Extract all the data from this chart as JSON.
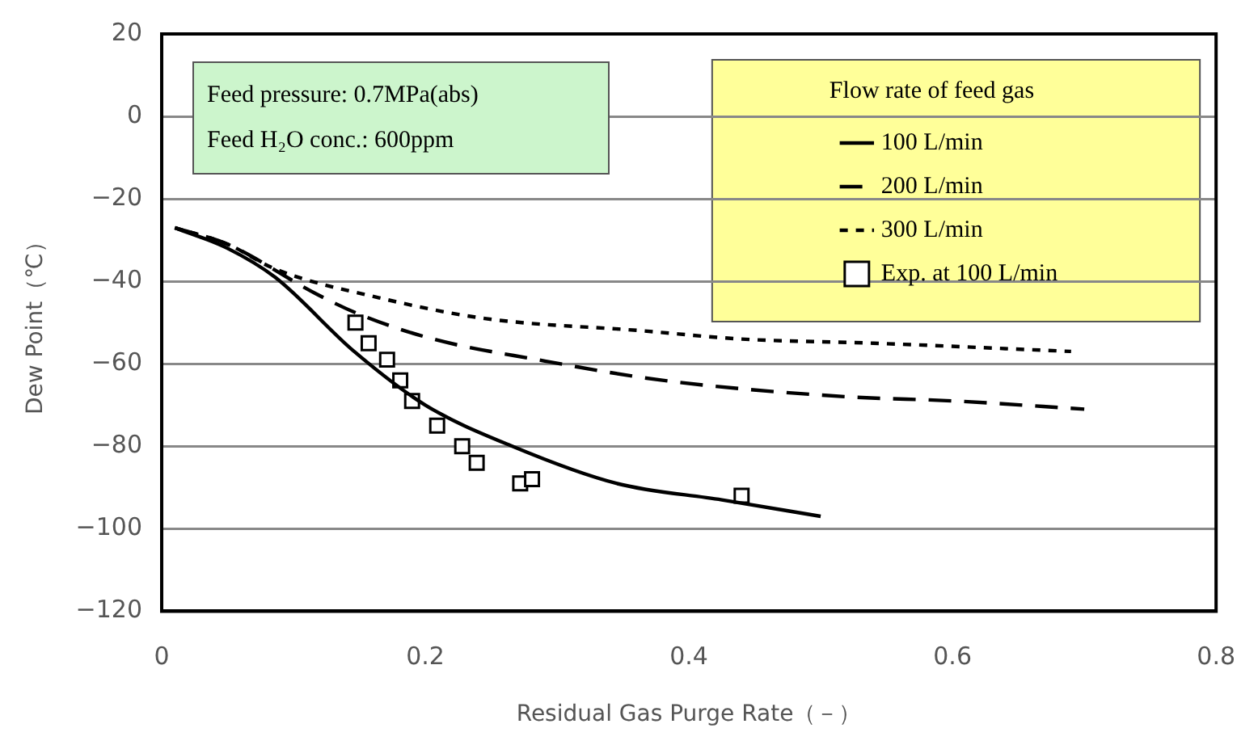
{
  "chart_data": {
    "type": "line",
    "xlabel": "Residual Gas Purge Rate（－）",
    "ylabel": "Dew Point（℃）",
    "legend_title": "Flow rate of feed gas",
    "legend": "top right",
    "grid": "y",
    "marker": "none",
    "xlim": [
      0,
      0.8
    ],
    "xticks": [
      0,
      0.2,
      0.4,
      0.6,
      0.8
    ],
    "ylim": [
      -120,
      20
    ],
    "yticks": [
      -120,
      -100,
      -80,
      -60,
      -40,
      -20,
      0,
      20
    ],
    "annotations": [
      "Feed pressure: 0.7MPa(abs)",
      "Feed H₂O conc.: 600ppm"
    ],
    "series": [
      {
        "name": "100 L/min",
        "color": "#000000",
        "line_style": "solid",
        "x": [
          0.01,
          0.05,
          0.086,
          0.146,
          0.2,
          0.266,
          0.345,
          0.425,
          0.5
        ],
        "values": [
          -27,
          -32,
          -39,
          -57,
          -70,
          -80,
          -89,
          -93,
          -97
        ]
      },
      {
        "name": "200 L/min",
        "color": "#000000",
        "line_style": "dashed",
        "x": [
          0.01,
          0.05,
          0.117,
          0.15,
          0.206,
          0.285,
          0.38,
          0.52,
          0.6,
          0.7
        ],
        "values": [
          -27,
          -31,
          -43,
          -48,
          -54,
          -59,
          -64,
          -68,
          -69,
          -71
        ]
      },
      {
        "name": "300 L/min",
        "color": "#000000",
        "line_style": "dotted",
        "x": [
          0.01,
          0.05,
          0.086,
          0.165,
          0.245,
          0.365,
          0.44,
          0.54,
          0.69
        ],
        "values": [
          -27,
          -31,
          -37,
          -44,
          -49,
          -52,
          -54,
          -55,
          -57
        ]
      },
      {
        "name": "Exp. at 100 L/min",
        "type": "scatter",
        "marker": "square",
        "color": "#000000",
        "x": [
          0.147,
          0.157,
          0.171,
          0.181,
          0.19,
          0.209,
          0.228,
          0.239,
          0.272,
          0.281,
          0.44
        ],
        "values": [
          -50,
          -55,
          -59,
          -64,
          -69,
          -75,
          -80,
          -84,
          -89,
          -88,
          -92
        ]
      }
    ]
  }
}
